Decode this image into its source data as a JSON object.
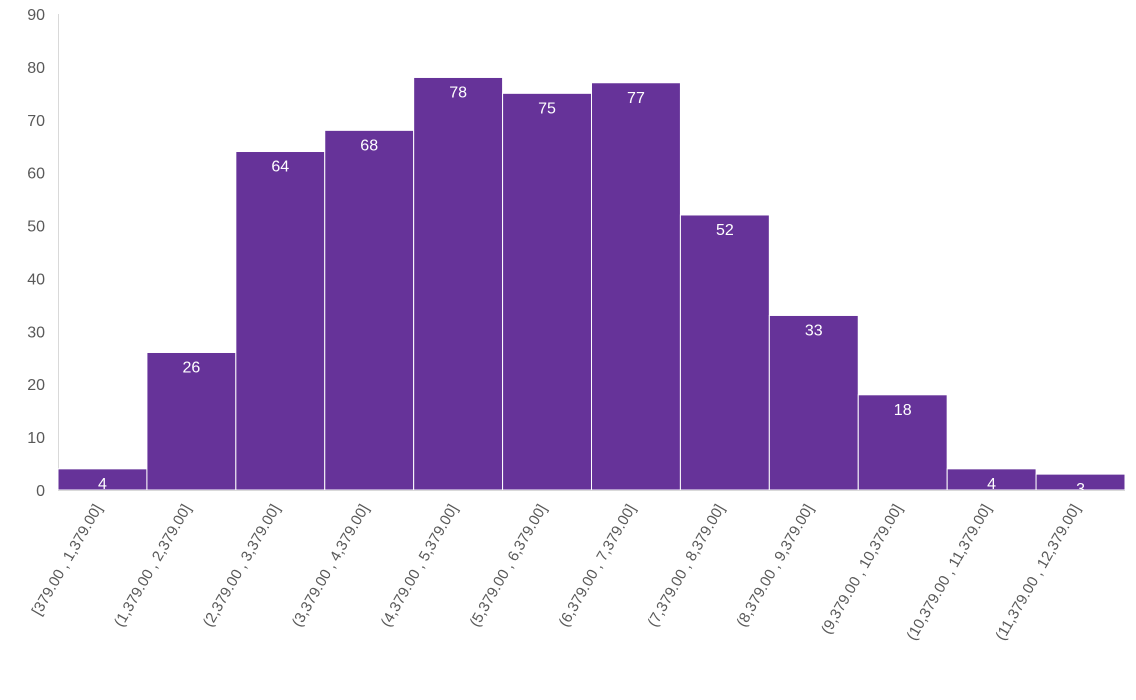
{
  "chart_data": {
    "type": "bar",
    "title": "",
    "xlabel": "",
    "ylabel": "",
    "categories": [
      "[379.00 , 1,379.00]",
      "(1,379.00 , 2,379.00]",
      "(2,379.00 , 3,379.00]",
      "(3,379.00 , 4,379.00]",
      "(4,379.00 , 5,379.00]",
      "(5,379.00 , 6,379.00]",
      "(6,379.00 , 7,379.00]",
      "(7,379.00 , 8,379.00]",
      "(8,379.00 , 9,379.00]",
      "(9,379.00 , 10,379.00]",
      "(10,379.00 , 11,379.00]",
      "(11,379.00 , 12,379.00]"
    ],
    "values": [
      4,
      26,
      64,
      68,
      78,
      75,
      77,
      52,
      33,
      18,
      4,
      3
    ],
    "ylim": [
      0,
      90
    ],
    "yticks": [
      0,
      10,
      20,
      30,
      40,
      50,
      60,
      70,
      80,
      90
    ],
    "grid": false,
    "legend": "none",
    "colors": {
      "bar": "#663399",
      "bar_edge": "#ffffff",
      "axis": "#d9d9d9",
      "tick_text": "#595959",
      "data_label": "#ffffff"
    }
  }
}
